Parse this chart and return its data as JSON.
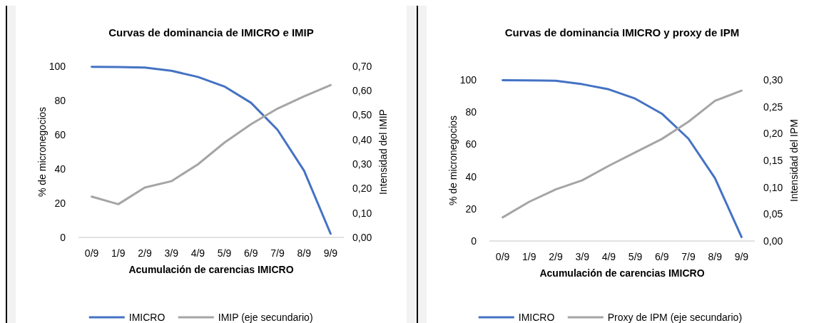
{
  "chart_data": [
    {
      "type": "line",
      "title": "Curvas de dominancia de IMICRO e IMIP",
      "xlabel": "Acumulación de carencias IMICRO",
      "ylabel": "% de micronegocios",
      "y2label": "Intensidad del IMIP",
      "categories": [
        "0/9",
        "1/9",
        "2/9",
        "3/9",
        "4/9",
        "5/9",
        "6/9",
        "7/9",
        "8/9",
        "9/9"
      ],
      "series": [
        {
          "name": "IMICRO",
          "color": "#4472c4",
          "values": [
            99.7,
            99.6,
            99.3,
            97.4,
            93.8,
            88.2,
            78.7,
            62.9,
            39,
            2.2
          ]
        },
        {
          "name": "IMIP (eje secundario)",
          "color": "#a5a5a5",
          "axis": "y2",
          "values": [
            0.167,
            0.136,
            0.204,
            0.23,
            0.299,
            0.388,
            0.463,
            0.527,
            0.577,
            0.623
          ]
        }
      ],
      "ylim": [
        0,
        100
      ],
      "yticks": [
        0,
        20,
        40,
        60,
        80,
        100
      ],
      "y2lim": [
        0,
        0.7
      ],
      "y2ticks": [
        {
          "value": 0,
          "label": "0,00"
        },
        {
          "value": 0.1,
          "label": "0,10"
        },
        {
          "value": 0.2,
          "label": "0,20"
        },
        {
          "value": 0.3,
          "label": "0,30"
        },
        {
          "value": 0.4,
          "label": "0,40"
        },
        {
          "value": 0.5,
          "label": "0,50"
        },
        {
          "value": 0.6,
          "label": "0,60"
        },
        {
          "value": 0.7,
          "label": "0,70"
        }
      ],
      "legend": "bottom",
      "grid": false,
      "marker": "none"
    },
    {
      "type": "line",
      "title": "Curvas de dominancia IMICRO y proxy de IPM",
      "xlabel": "Acumulación de carencias IMICRO",
      "ylabel": "% de micronegocios",
      "y2label": "Intensidad del IPM",
      "categories": [
        "0/9",
        "1/9",
        "2/9",
        "3/9",
        "4/9",
        "5/9",
        "6/9",
        "7/9",
        "8/9",
        "9/9"
      ],
      "series": [
        {
          "name": "IMICRO",
          "color": "#4472c4",
          "values": [
            99.8,
            99.7,
            99.4,
            97.3,
            94.1,
            88.3,
            79,
            63.5,
            39,
            2.5
          ]
        },
        {
          "name": "Proxy de IPM (eje secundario)",
          "color": "#a5a5a5",
          "axis": "y2",
          "values": [
            0.044,
            0.073,
            0.096,
            0.113,
            0.14,
            0.165,
            0.19,
            0.222,
            0.261,
            0.28
          ]
        }
      ],
      "ylim": [
        0,
        100
      ],
      "yticks": [
        0,
        20,
        40,
        60,
        80,
        100
      ],
      "y2lim": [
        0,
        0.3
      ],
      "y2ticks": [
        {
          "value": 0,
          "label": "0,00"
        },
        {
          "value": 0.05,
          "label": "0,05"
        },
        {
          "value": 0.1,
          "label": "0,10"
        },
        {
          "value": 0.15,
          "label": "0,15"
        },
        {
          "value": 0.2,
          "label": "0,20"
        },
        {
          "value": 0.25,
          "label": "0,25"
        },
        {
          "value": 0.3,
          "label": "0,30"
        }
      ],
      "legend": "bottom",
      "grid": false,
      "marker": "none"
    }
  ]
}
